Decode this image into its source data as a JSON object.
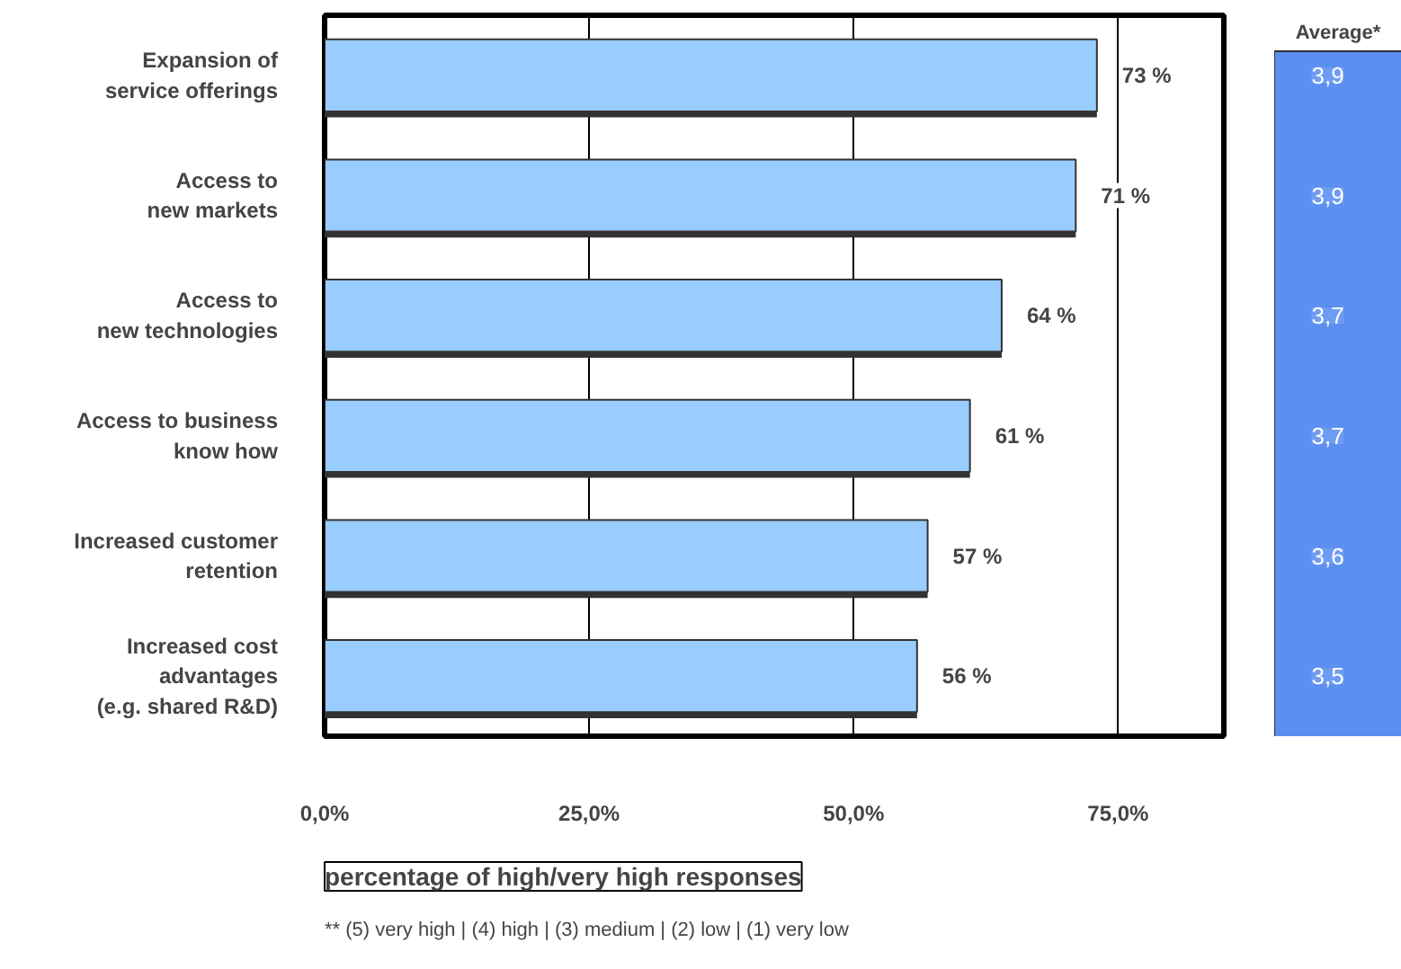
{
  "chart_data": {
    "type": "bar",
    "orientation": "horizontal",
    "categories": [
      "Expansion of\nservice offerings",
      "Access to\nnew markets",
      "Access to\nnew technologies",
      "Access to business\nknow how",
      "Increased customer\nretention",
      "Increased cost\nadvantages\n(e.g. shared R&D)"
    ],
    "values": [
      73,
      71,
      64,
      61,
      57,
      56
    ],
    "value_labels": [
      "73 %",
      "71 %",
      "64 %",
      "61 %",
      "57 %",
      "56 %"
    ],
    "color": "#99ccff",
    "xlim": [
      0,
      85
    ],
    "xticks": [
      {
        "value": 0,
        "label": "0,0%"
      },
      {
        "value": 25,
        "label": "25,0%"
      },
      {
        "value": 50,
        "label": "50,0%"
      },
      {
        "value": 75,
        "label": "75,0%"
      }
    ],
    "grid": "x",
    "xlabel": "percentage of high/very high responses",
    "annotations": [
      "Average*",
      "3,9",
      "3,9",
      "3,7",
      "3,7",
      "3,6",
      "3,5",
      "** (5) very high | (4) high | (3) medium  |  (2) low  |  (1) very low"
    ]
  }
}
